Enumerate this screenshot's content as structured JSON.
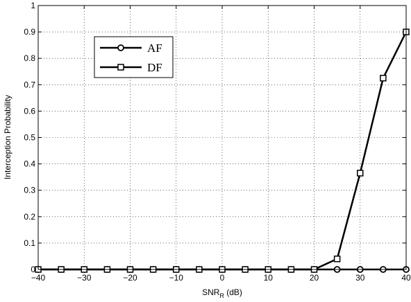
{
  "chart_data": {
    "type": "line",
    "title": "",
    "xlabel": {
      "main": "SNR",
      "subscript": "R",
      "suffix": " (dB)"
    },
    "ylabel": "Interception Probability",
    "xlim": [
      -40,
      40
    ],
    "ylim": [
      0,
      1
    ],
    "x_ticks": [
      -40,
      -30,
      -20,
      -10,
      0,
      10,
      20,
      30,
      40
    ],
    "y_ticks": [
      0,
      0.1,
      0.2,
      0.3,
      0.4,
      0.5,
      0.6,
      0.7,
      0.8,
      0.9,
      1
    ],
    "grid": true,
    "legend_position": "upper-left",
    "x": [
      -40,
      -35,
      -30,
      -25,
      -20,
      -15,
      -10,
      -5,
      0,
      5,
      10,
      15,
      20,
      25,
      30,
      35,
      40
    ],
    "series": [
      {
        "name": "AF",
        "marker": "circle",
        "color": "#000000",
        "values": [
          0,
          0,
          0,
          0,
          0,
          0,
          0,
          0,
          0,
          0,
          0,
          0,
          0,
          0,
          0,
          0,
          0
        ]
      },
      {
        "name": "DF",
        "marker": "square",
        "color": "#000000",
        "values": [
          0,
          0,
          0,
          0,
          0,
          0,
          0,
          0,
          0,
          0,
          0,
          0,
          0,
          0.04,
          0.365,
          0.725,
          0.9
        ]
      }
    ]
  }
}
